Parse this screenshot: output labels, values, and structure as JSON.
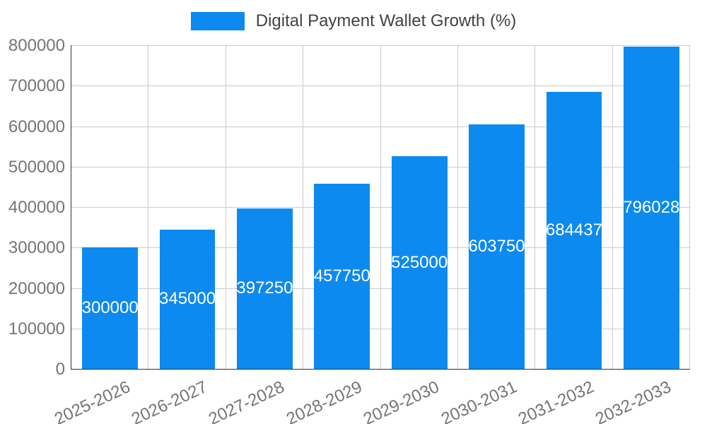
{
  "chart_data": {
    "type": "bar",
    "title": "Digital Payment Wallet Growth (%)",
    "categories": [
      "2025-2026",
      "2026-2027",
      "2027-2028",
      "2028-2029",
      "2029-2030",
      "2030-2031",
      "2031-2032",
      "2032-2033"
    ],
    "values": [
      300000,
      345000,
      397250,
      457750,
      525000,
      603750,
      684437,
      796028
    ],
    "value_labels": [
      "300000",
      "345000",
      "397250",
      "457750",
      "525000",
      "603750",
      "684437",
      "796028"
    ],
    "ylim": [
      0,
      800000
    ],
    "y_ticks": [
      0,
      100000,
      200000,
      300000,
      400000,
      500000,
      600000,
      700000,
      800000
    ],
    "grid": true,
    "legend_position": "top",
    "bar_color": "#0d8af0",
    "value_label_color": "#ffffff",
    "tick_label_color": "#757575",
    "legend_text_color": "#424242",
    "grid_color": "#cccccc",
    "axis_color": "#333333"
  }
}
